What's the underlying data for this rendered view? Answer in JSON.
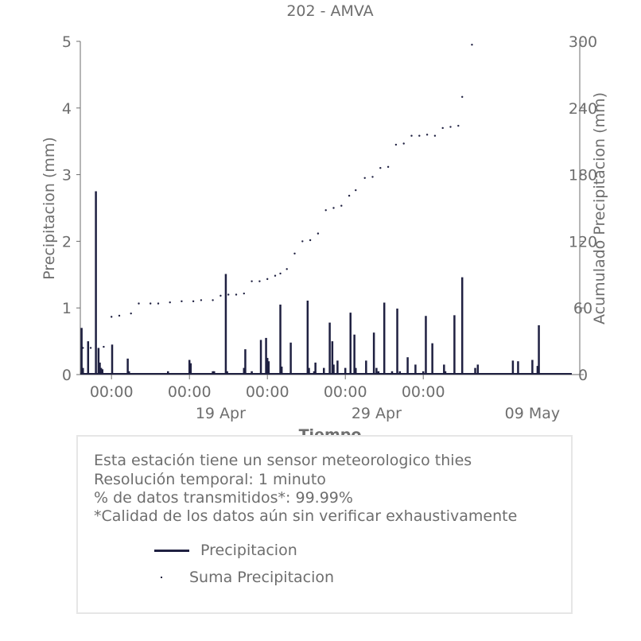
{
  "chart_data": {
    "type": "line",
    "title": "202 - AMVA",
    "xlabel": "Tiempo",
    "ylabel": "Precipitacion (mm)",
    "y2label": "Acumulado Precipitacion (mm)",
    "ylim": [
      0,
      5
    ],
    "y2lim": [
      0,
      300
    ],
    "yticks": [
      "0",
      "1",
      "2",
      "3",
      "4",
      "5"
    ],
    "y2ticks": [
      "0",
      "60",
      "120",
      "180",
      "240",
      "300"
    ],
    "xrange": [
      "2024-04-10",
      "2024-05-10"
    ],
    "xticks_major": [
      {
        "t": "2024-04-12",
        "label": "00:00"
      },
      {
        "t": "2024-04-17",
        "label": "00:00"
      },
      {
        "t": "2024-04-22",
        "label": "00:00"
      },
      {
        "t": "2024-04-27",
        "label": "00:00"
      },
      {
        "t": "2024-05-02",
        "label": "00:00"
      }
    ],
    "xticks_dates": [
      {
        "t": "2024-04-19",
        "label": "19 Apr"
      },
      {
        "t": "2024-04-29",
        "label": "29 Apr"
      },
      {
        "t": "2024-05-09",
        "label": "09 May"
      }
    ],
    "grid": false,
    "legend_position": "bottom",
    "series": [
      {
        "name": "Precipitacion",
        "kind": "spikes",
        "color": "#1f2041",
        "x": [
          "2024-04-10T02:00",
          "2024-04-10T04:00",
          "2024-04-10T12:00",
          "2024-04-11T00:00",
          "2024-04-11T04:00",
          "2024-04-11T06:00",
          "2024-04-11T08:00",
          "2024-04-11T10:00",
          "2024-04-12T01:00",
          "2024-04-13T01:00",
          "2024-04-13T03:00",
          "2024-04-15T15:00",
          "2024-04-17T00:00",
          "2024-04-17T02:00",
          "2024-04-18T12:00",
          "2024-04-18T14:00",
          "2024-04-19T08:00",
          "2024-04-19T10:00",
          "2024-04-20T12:00",
          "2024-04-20T14:00",
          "2024-04-21T00:00",
          "2024-04-21T14:00",
          "2024-04-21T22:00",
          "2024-04-22T00:00",
          "2024-04-22T02:00",
          "2024-04-22T20:00",
          "2024-04-22T22:00",
          "2024-04-23T12:00",
          "2024-04-24T14:00",
          "2024-04-24T16:00",
          "2024-04-25T00:00",
          "2024-04-25T02:00",
          "2024-04-25T15:00",
          "2024-04-26T00:00",
          "2024-04-26T04:00",
          "2024-04-26T06:00",
          "2024-04-26T12:00",
          "2024-04-27T00:00",
          "2024-04-27T08:00",
          "2024-04-27T14:00",
          "2024-04-27T16:00",
          "2024-04-28T08:00",
          "2024-04-28T20:00",
          "2024-04-29T00:00",
          "2024-04-29T03:00",
          "2024-04-29T12:00",
          "2024-04-30T00:00",
          "2024-04-30T08:00",
          "2024-04-30T12:00",
          "2024-05-01T00:00",
          "2024-05-01T12:00",
          "2024-05-02T00:00",
          "2024-05-02T04:00",
          "2024-05-02T14:00",
          "2024-05-03T08:00",
          "2024-05-03T10:00",
          "2024-05-04T00:00",
          "2024-05-04T12:00",
          "2024-05-05T08:00",
          "2024-05-05T12:00",
          "2024-05-07T18:00",
          "2024-05-08T02:00",
          "2024-05-09T00:00",
          "2024-05-09T08:00",
          "2024-05-09T10:00"
        ],
        "values": [
          0.7,
          0.1,
          0.5,
          2.75,
          0.4,
          0.18,
          0.1,
          0.08,
          0.45,
          0.24,
          0.05,
          0.05,
          0.22,
          0.17,
          0.05,
          0.05,
          1.51,
          0.05,
          0.1,
          0.38,
          0.05,
          0.52,
          0.55,
          0.25,
          0.2,
          1.05,
          0.12,
          0.48,
          1.11,
          0.1,
          0.05,
          0.18,
          0.1,
          0.78,
          0.5,
          0.15,
          0.21,
          0.1,
          0.93,
          0.6,
          0.1,
          0.21,
          0.63,
          0.1,
          0.05,
          1.08,
          0.05,
          0.99,
          0.05,
          0.26,
          0.15,
          0.05,
          0.88,
          0.47,
          0.15,
          0.05,
          0.89,
          1.46,
          0.1,
          0.15,
          0.21,
          0.2,
          0.22,
          0.13,
          0.74
        ]
      },
      {
        "name": "Suma Precipitacion",
        "kind": "dots",
        "axis": "right",
        "color": "#1f2041",
        "x": [
          "2024-04-10T04:00",
          "2024-04-10T16:00",
          "2024-04-11T12:00",
          "2024-04-12T00:00",
          "2024-04-12T12:00",
          "2024-04-13T06:00",
          "2024-04-13T18:00",
          "2024-04-14T12:00",
          "2024-04-15T00:00",
          "2024-04-15T18:00",
          "2024-04-16T12:00",
          "2024-04-17T06:00",
          "2024-04-17T18:00",
          "2024-04-18T12:00",
          "2024-04-19T00:00",
          "2024-04-19T12:00",
          "2024-04-20T00:00",
          "2024-04-20T12:00",
          "2024-04-21T00:00",
          "2024-04-21T12:00",
          "2024-04-22T00:00",
          "2024-04-22T12:00",
          "2024-04-22T20:00",
          "2024-04-23T06:00",
          "2024-04-23T18:00",
          "2024-04-24T06:00",
          "2024-04-24T18:00",
          "2024-04-25T06:00",
          "2024-04-25T18:00",
          "2024-04-26T06:00",
          "2024-04-26T18:00",
          "2024-04-27T06:00",
          "2024-04-27T16:00",
          "2024-04-28T06:00",
          "2024-04-28T18:00",
          "2024-04-29T06:00",
          "2024-04-29T18:00",
          "2024-04-30T06:00",
          "2024-04-30T18:00",
          "2024-05-01T06:00",
          "2024-05-01T18:00",
          "2024-05-02T06:00",
          "2024-05-02T18:00",
          "2024-05-03T06:00",
          "2024-05-03T18:00",
          "2024-05-04T06:00",
          "2024-05-04T12:00",
          "2024-05-05T03:00"
        ],
        "values": [
          24,
          24,
          25,
          52,
          53,
          55,
          64,
          64,
          64,
          65,
          66,
          66,
          67,
          67,
          71,
          72,
          72,
          73,
          84,
          84,
          86,
          89,
          91,
          95,
          109,
          120,
          121,
          127,
          148,
          150,
          152,
          161,
          166,
          177,
          178,
          186,
          187,
          207,
          208,
          215,
          215,
          216,
          215,
          222,
          223,
          224,
          250,
          297
        ]
      }
    ]
  },
  "info": {
    "line1": "Esta estación tiene un sensor meteorologico thies",
    "line2": "Resolución temporal: 1 minuto",
    "line3": "% de datos transmitidos*: 99.99%",
    "line4": "*Calidad de los datos aún sin verificar exhaustivamente"
  }
}
